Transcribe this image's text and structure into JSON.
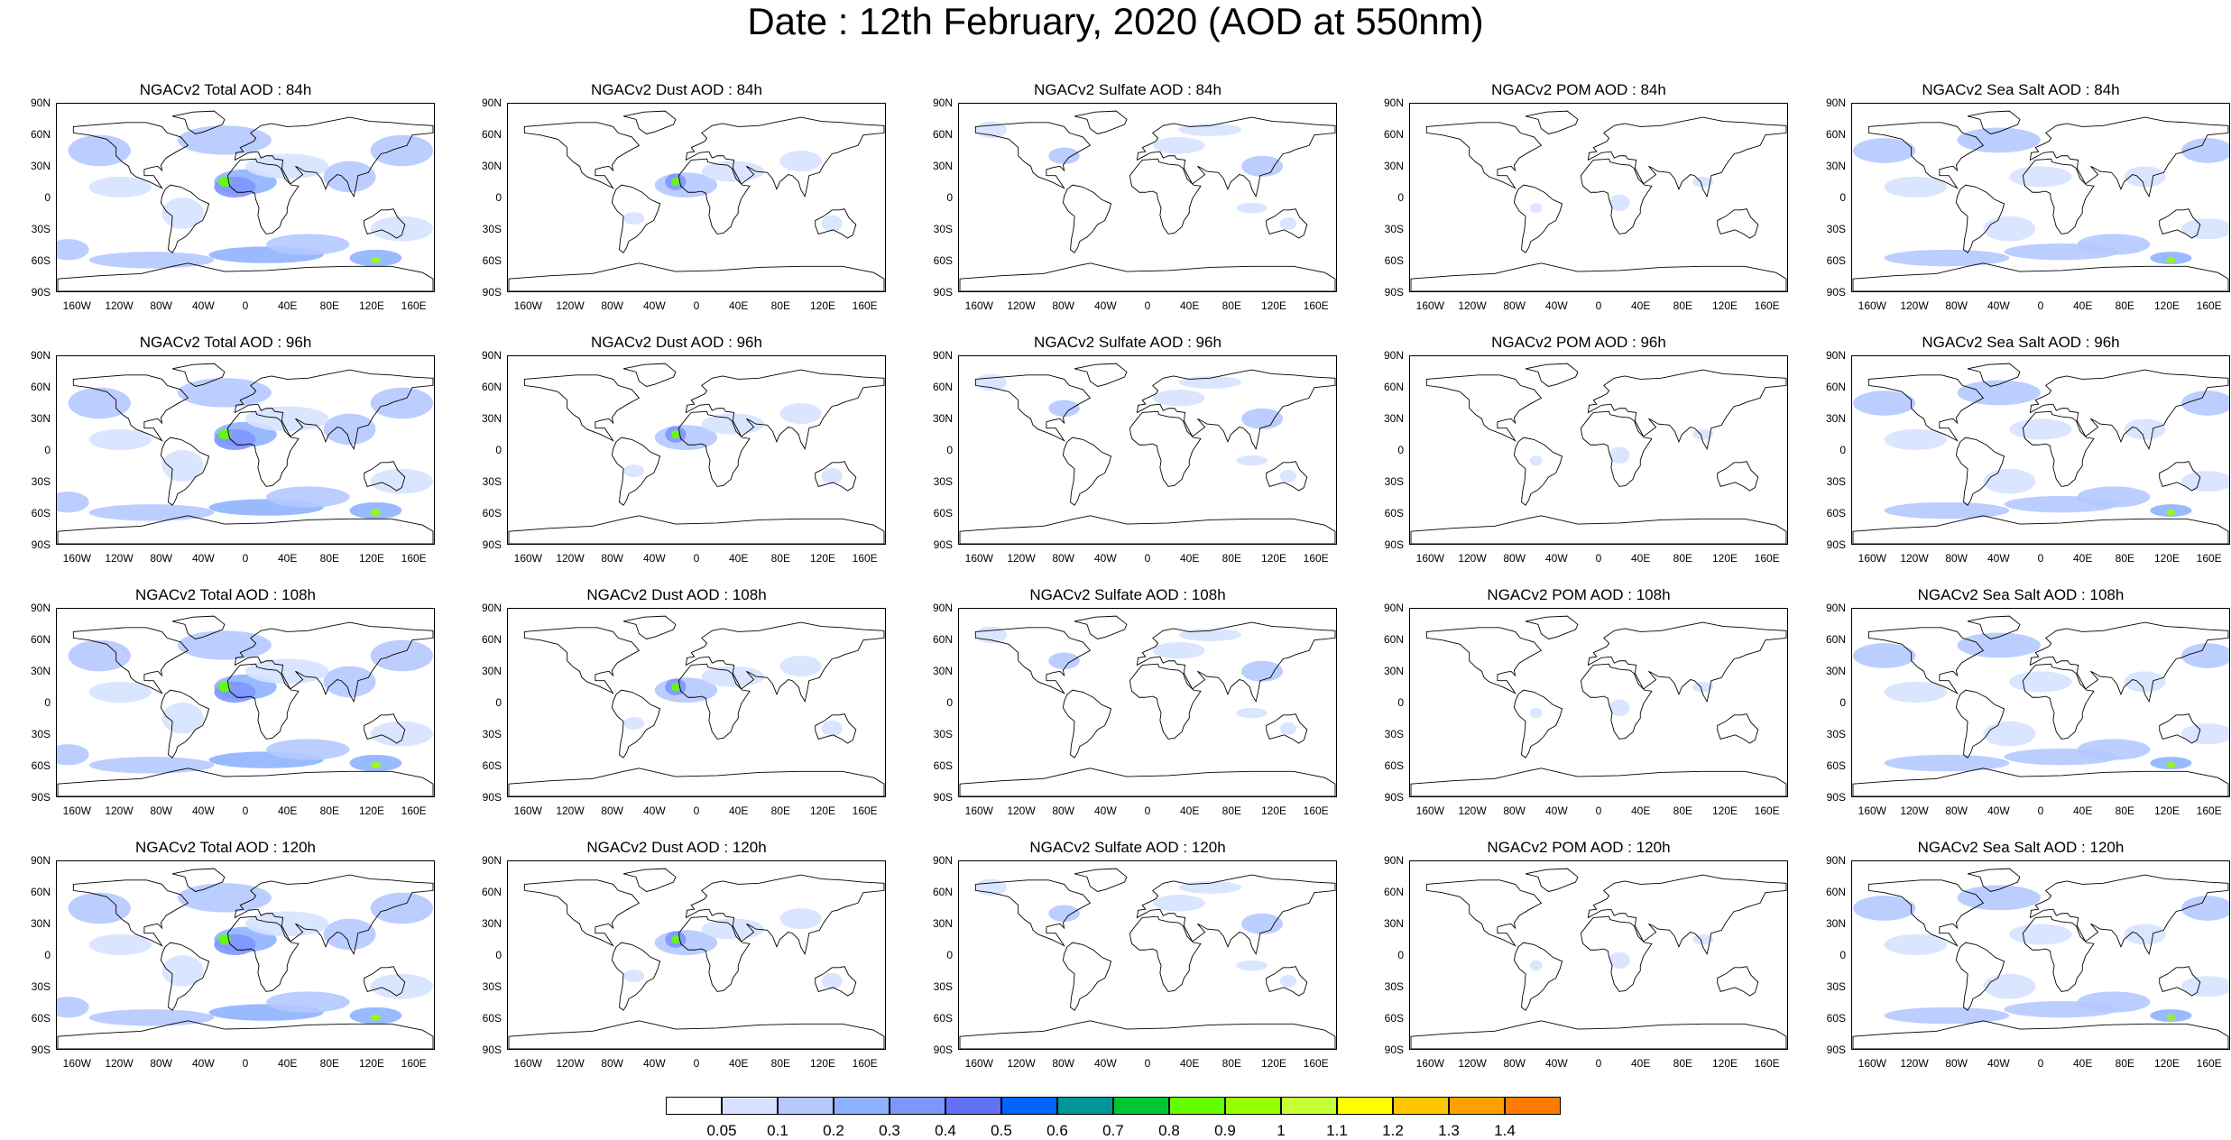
{
  "title": "Date : 12th February, 2020 (AOD at 550nm)",
  "axes": {
    "lat_labels": [
      "90N",
      "60N",
      "30N",
      "0",
      "30S",
      "60S",
      "90S"
    ],
    "lon_labels": [
      "160W",
      "120W",
      "80W",
      "40W",
      "0",
      "40E",
      "80E",
      "120E",
      "160E"
    ],
    "lon_values": [
      -160,
      -120,
      -80,
      -40,
      0,
      40,
      80,
      120,
      160
    ]
  },
  "panels": [
    {
      "title": "NGACv2 Total AOD : 84h",
      "species": "total"
    },
    {
      "title": "NGACv2 Dust AOD : 84h",
      "species": "dust"
    },
    {
      "title": "NGACv2 Sulfate AOD : 84h",
      "species": "sulfate"
    },
    {
      "title": "NGACv2 POM AOD : 84h",
      "species": "pom"
    },
    {
      "title": "NGACv2 Sea Salt AOD : 84h",
      "species": "seasalt"
    },
    {
      "title": "NGACv2 Total AOD : 96h",
      "species": "total"
    },
    {
      "title": "NGACv2 Dust AOD : 96h",
      "species": "dust"
    },
    {
      "title": "NGACv2 Sulfate AOD : 96h",
      "species": "sulfate"
    },
    {
      "title": "NGACv2 POM AOD : 96h",
      "species": "pom"
    },
    {
      "title": "NGACv2 Sea Salt AOD : 96h",
      "species": "seasalt"
    },
    {
      "title": "NGACv2 Total AOD : 108h",
      "species": "total"
    },
    {
      "title": "NGACv2 Dust AOD : 108h",
      "species": "dust"
    },
    {
      "title": "NGACv2 Sulfate AOD : 108h",
      "species": "sulfate"
    },
    {
      "title": "NGACv2 POM AOD : 108h",
      "species": "pom"
    },
    {
      "title": "NGACv2 Sea Salt AOD : 108h",
      "species": "seasalt"
    },
    {
      "title": "NGACv2 Total AOD : 120h",
      "species": "total"
    },
    {
      "title": "NGACv2 Dust AOD : 120h",
      "species": "dust"
    },
    {
      "title": "NGACv2 Sulfate AOD : 120h",
      "species": "sulfate"
    },
    {
      "title": "NGACv2 POM AOD : 120h",
      "species": "pom"
    },
    {
      "title": "NGACv2 Sea Salt  AOD : 120h",
      "species": "seasalt"
    }
  ],
  "colorbar": {
    "labels": [
      "0.05",
      "0.1",
      "0.2",
      "0.3",
      "0.4",
      "0.5",
      "0.6",
      "0.7",
      "0.8",
      "0.9",
      "1",
      "1.1",
      "1.2",
      "1.3",
      "1.4"
    ],
    "colors": [
      "#ffffff",
      "#d6e2ff",
      "#b5c9ff",
      "#8eb2ff",
      "#7f96ff",
      "#6370f8",
      "#0063ff",
      "#009696",
      "#00c633",
      "#63ff00",
      "#96ff00",
      "#c6ff33",
      "#ffff00",
      "#ffc600",
      "#ffa000",
      "#ff7c00",
      "#ff1900"
    ]
  }
}
